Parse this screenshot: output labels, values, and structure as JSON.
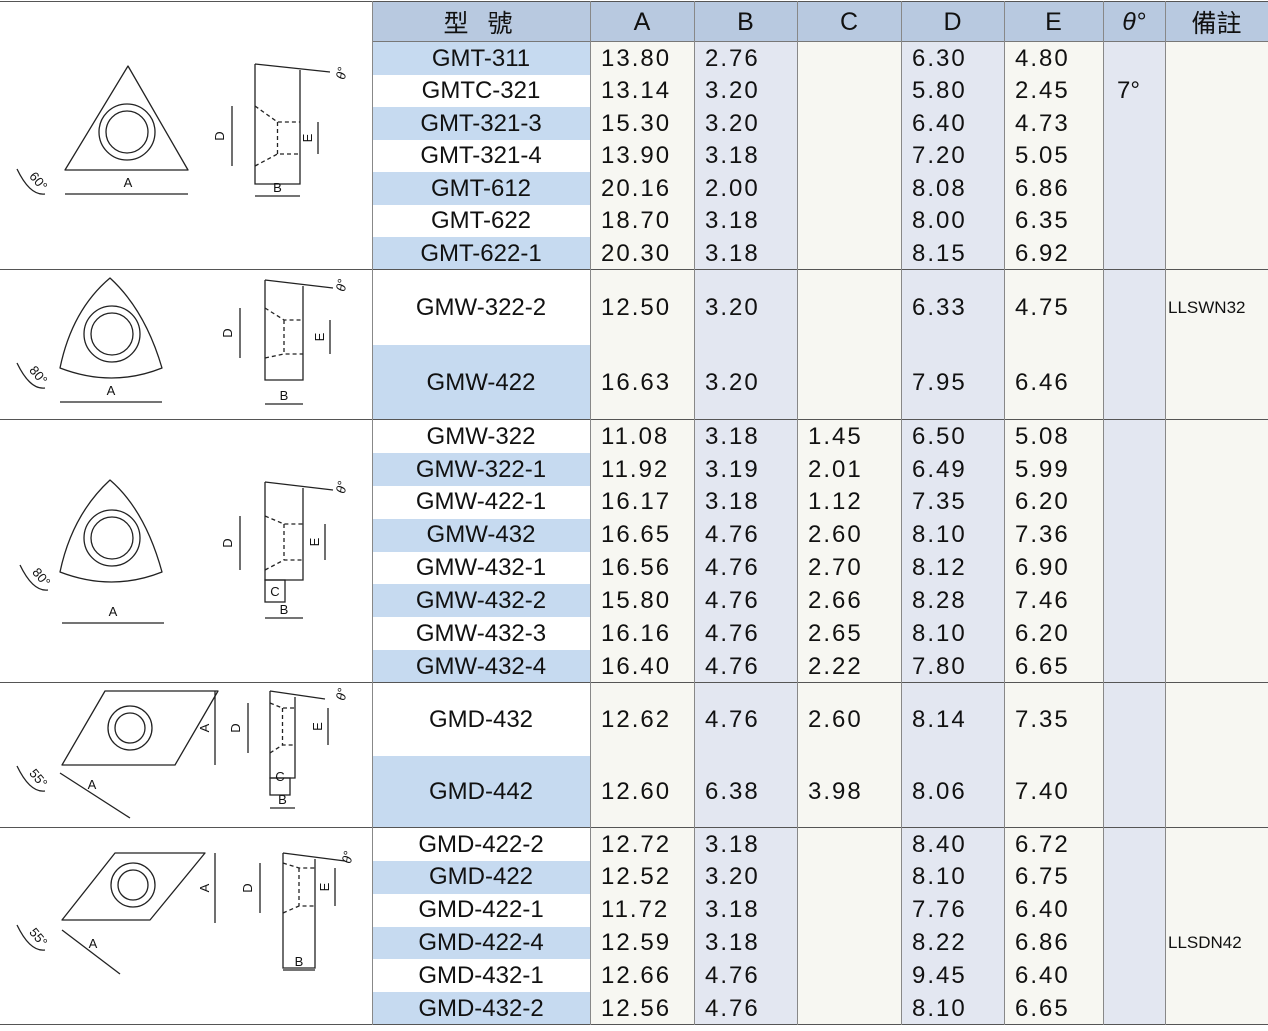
{
  "table": {
    "header": [
      "型 號",
      "A",
      "B",
      "C",
      "D",
      "E",
      "θ°",
      "備註"
    ],
    "groups": [
      {
        "diagram": {
          "angle": "60°",
          "a": "A",
          "b": "B",
          "d": "D",
          "e": "E",
          "theta": "θ°"
        },
        "rows": [
          [
            "GMT-311",
            "13.80",
            "2.76",
            null,
            "6.30",
            "4.80",
            null,
            null
          ],
          [
            "GMTC-321",
            "13.14",
            "3.20",
            null,
            "5.80",
            "2.45",
            "7°",
            null
          ],
          [
            "GMT-321-3",
            "15.30",
            "3.20",
            null,
            "6.40",
            "4.73",
            null,
            null
          ],
          [
            "GMT-321-4",
            "13.90",
            "3.18",
            null,
            "7.20",
            "5.05",
            null,
            null
          ],
          [
            "GMT-612",
            "20.16",
            "2.00",
            null,
            "8.08",
            "6.86",
            null,
            null
          ],
          [
            "GMT-622",
            "18.70",
            "3.18",
            null,
            "8.00",
            "6.35",
            null,
            null
          ],
          [
            "GMT-622-1",
            "20.30",
            "3.18",
            null,
            "8.15",
            "6.92",
            null,
            null
          ]
        ]
      },
      {
        "diagram": {
          "angle": "80°",
          "a": "A",
          "b": "B",
          "d": "D",
          "e": "E",
          "theta": "θ°"
        },
        "rows": [
          [
            "GMW-322-2",
            "12.50",
            "3.20",
            null,
            "6.33",
            "4.75",
            null,
            "LLSWN32"
          ],
          [
            "GMW-422",
            "16.63",
            "3.20",
            null,
            "7.95",
            "6.46",
            null,
            null
          ]
        ]
      },
      {
        "diagram": {
          "angle": "80°",
          "a": "A",
          "b": "B",
          "c": "C",
          "d": "D",
          "e": "E",
          "theta": "θ°"
        },
        "rows": [
          [
            "GMW-322",
            "11.08",
            "3.18",
            "1.45",
            "6.50",
            "5.08",
            null,
            null
          ],
          [
            "GMW-322-1",
            "11.92",
            "3.19",
            "2.01",
            "6.49",
            "5.99",
            null,
            null
          ],
          [
            "GMW-422-1",
            "16.17",
            "3.18",
            "1.12",
            "7.35",
            "6.20",
            null,
            null
          ],
          [
            "GMW-432",
            "16.65",
            "4.76",
            "2.60",
            "8.10",
            "7.36",
            null,
            null
          ],
          [
            "GMW-432-1",
            "16.56",
            "4.76",
            "2.70",
            "8.12",
            "6.90",
            null,
            null
          ],
          [
            "GMW-432-2",
            "15.80",
            "4.76",
            "2.66",
            "8.28",
            "7.46",
            null,
            null
          ],
          [
            "GMW-432-3",
            "16.16",
            "4.76",
            "2.65",
            "8.10",
            "6.20",
            null,
            null
          ],
          [
            "GMW-432-4",
            "16.40",
            "4.76",
            "2.22",
            "7.80",
            "6.65",
            null,
            null
          ]
        ]
      },
      {
        "diagram": {
          "angle": "55°",
          "a": "A",
          "b": "B",
          "c": "C",
          "d": "D",
          "e": "E",
          "theta": "θ°"
        },
        "rows": [
          [
            "GMD-432",
            "12.62",
            "4.76",
            "2.60",
            "8.14",
            "7.35",
            null,
            null
          ],
          [
            "GMD-442",
            "12.60",
            "6.38",
            "3.98",
            "8.06",
            "7.40",
            null,
            null
          ]
        ]
      },
      {
        "diagram": {
          "angle": "55°",
          "a": "A",
          "b": "B",
          "d": "D",
          "e": "E",
          "theta": "θ°"
        },
        "rows": [
          [
            "GMD-422-2",
            "12.72",
            "3.18",
            null,
            "8.40",
            "6.72",
            null,
            null
          ],
          [
            "GMD-422",
            "12.52",
            "3.20",
            null,
            "8.10",
            "6.75",
            null,
            null
          ],
          [
            "GMD-422-1",
            "11.72",
            "3.18",
            null,
            "7.76",
            "6.40",
            null,
            null
          ],
          [
            "GMD-422-4",
            "12.59",
            "3.18",
            null,
            "8.22",
            "6.86",
            null,
            "LLSDN42"
          ],
          [
            "GMD-432-1",
            "12.66",
            "4.76",
            null,
            "9.45",
            "6.40",
            null,
            null
          ],
          [
            "GMD-432-2",
            "12.56",
            "4.76",
            null,
            "8.10",
            "6.65",
            null,
            null
          ]
        ]
      }
    ]
  }
}
